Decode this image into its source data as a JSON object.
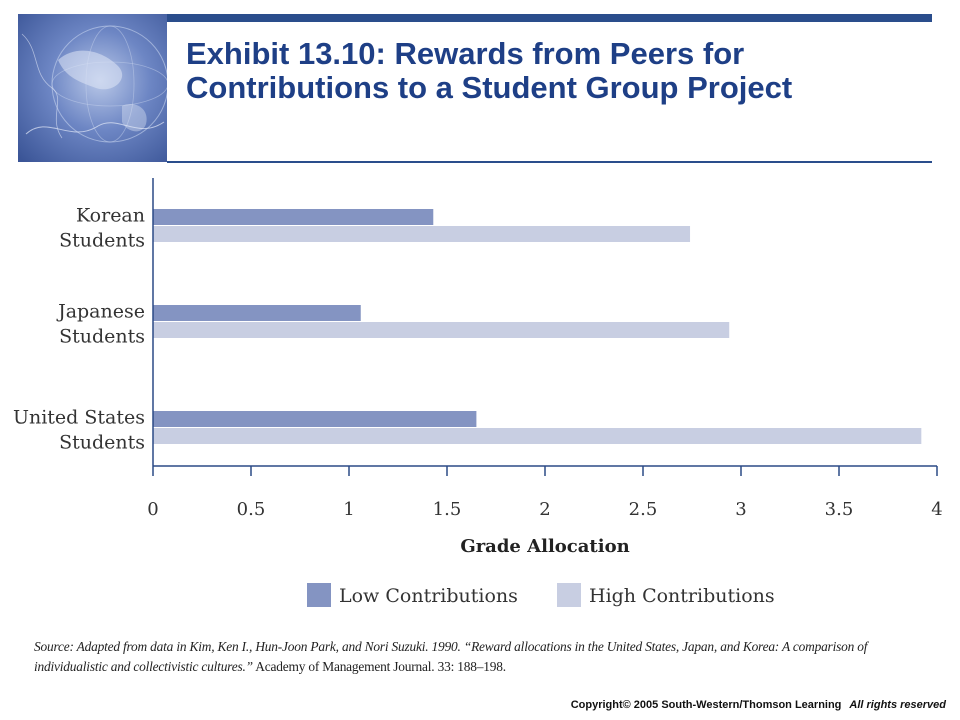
{
  "slide": {
    "title": "Exhibit 13.10: Rewards from Peers for Contributions to a Student Group Project",
    "source_prefix": "Source: Adapted from data in Kim, Ken I., Hun-Joon Park, and Nori Suzuki. 1990. “Reward allocations in the United States, Japan, and Korea: A comparison of individualistic and collectivistic cultures.”",
    "source_journal": "Academy of Management Journal. 33: 188–198.",
    "copyright": "Copyright© 2005 South-Western/Thomson Learning",
    "rights": "All rights reserved"
  },
  "colors": {
    "brand": "#2a4d8c",
    "title_text": "#1e3f86",
    "low": "#8494c2",
    "high": "#c8cee2",
    "axis": "#2b4a86"
  },
  "chart_data": {
    "type": "bar",
    "orientation": "horizontal",
    "title": "",
    "xlabel": "Grade Allocation",
    "ylabel": "",
    "xlim": [
      0,
      4
    ],
    "ticks": [
      0,
      0.5,
      1,
      1.5,
      2,
      2.5,
      3,
      3.5,
      4
    ],
    "tick_labels": [
      "0",
      "0.5",
      "1",
      "1.5",
      "2",
      "2.5",
      "3",
      "3.5",
      "4"
    ],
    "categories": [
      [
        "Korean",
        "Students"
      ],
      [
        "Japanese",
        "Students"
      ],
      [
        "United States",
        "Students"
      ]
    ],
    "series": [
      {
        "name": "Low Contributions",
        "color": "#8494c2",
        "values": [
          1.43,
          1.06,
          1.65
        ]
      },
      {
        "name": "High Contributions",
        "color": "#c8cee2",
        "values": [
          2.74,
          2.94,
          3.92
        ]
      }
    ],
    "grid": false,
    "legend_position": "bottom"
  }
}
